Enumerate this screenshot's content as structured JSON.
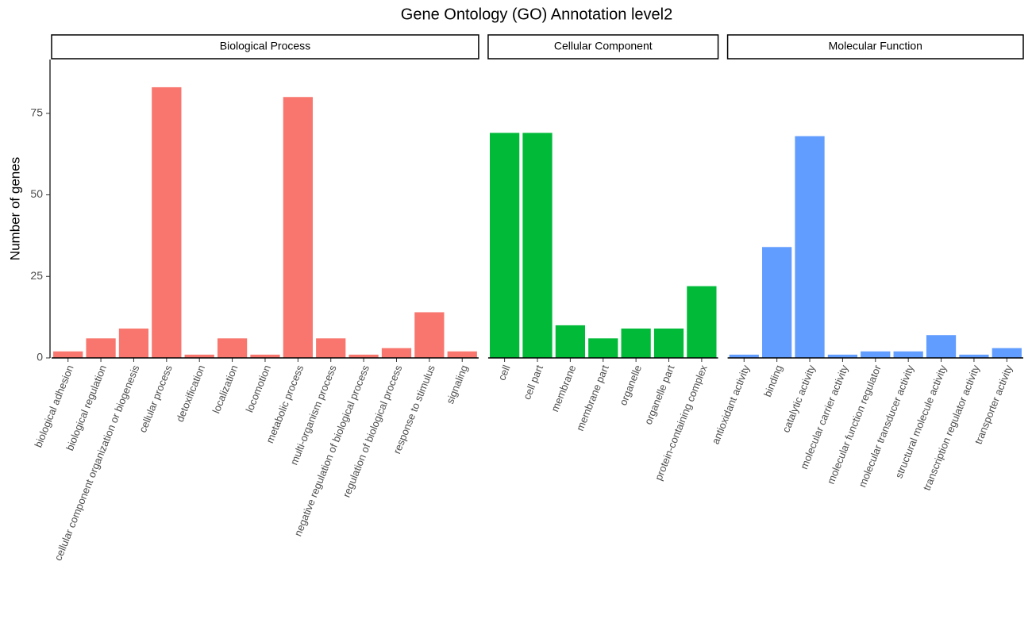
{
  "chart_data": {
    "type": "bar",
    "title": "Gene Ontology (GO) Annotation level2",
    "y_label": "Number of genes",
    "ylim": [
      0,
      91.5
    ],
    "yticks": [
      0,
      25,
      50,
      75
    ],
    "panels": [
      {
        "title": "Biological Process",
        "color": "#f8766d",
        "categories": [
          "biological adhesion",
          "biological regulation",
          "cellular component organization or biogenesis",
          "cellular process",
          "detoxification",
          "localization",
          "locomotion",
          "metabolic process",
          "multi-organism process",
          "negative regulation of biological process",
          "regulation of biological process",
          "response to stimulus",
          "signaling"
        ],
        "values": [
          2,
          6,
          9,
          83,
          1,
          6,
          1,
          80,
          6,
          1,
          3,
          14,
          2
        ]
      },
      {
        "title": "Cellular Component",
        "color": "#00ba38",
        "categories": [
          "cell",
          "cell part",
          "membrane",
          "membrane part",
          "organelle",
          "organelle part",
          "protein-containing complex"
        ],
        "values": [
          69,
          69,
          10,
          6,
          9,
          9,
          22
        ]
      },
      {
        "title": "Molecular Function",
        "color": "#619cff",
        "categories": [
          "antioxidant activity",
          "binding",
          "catalytic activity",
          "molecular carrier activity",
          "molecular function regulator",
          "molecular transducer activity",
          "structural molecule activity",
          "transcription regulator activity",
          "transporter activity"
        ],
        "values": [
          1,
          34,
          68,
          1,
          2,
          2,
          7,
          1,
          3
        ]
      }
    ]
  }
}
